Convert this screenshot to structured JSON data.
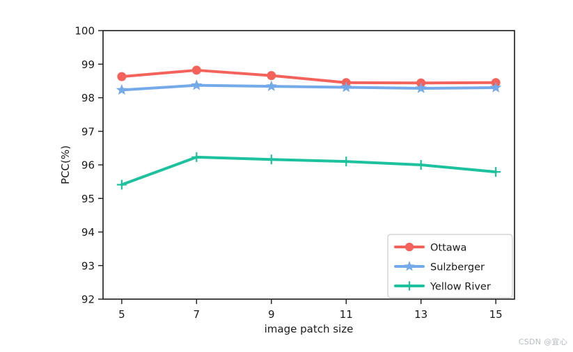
{
  "figure": {
    "watermark": {
      "text": "CSDN @宜心",
      "color": "#b6bcc2"
    },
    "background": "#ffffff"
  },
  "chart_data": {
    "type": "line",
    "title": "",
    "xlabel": "image patch size",
    "ylabel": "PCC(%)",
    "x": [
      5,
      7,
      9,
      11,
      13,
      15
    ],
    "xticks": [
      "5",
      "7",
      "9",
      "11",
      "13",
      "15"
    ],
    "yticks": [
      "92",
      "93",
      "94",
      "95",
      "96",
      "97",
      "98",
      "99",
      "100"
    ],
    "xlim": [
      4.5,
      15.5
    ],
    "ylim": [
      92,
      100
    ],
    "grid": false,
    "legend_position": "lower-right",
    "axis_color": "#1a1a1a",
    "legend_border_color": "#cccccc",
    "series": [
      {
        "name": "Ottawa",
        "color": "#f4635b",
        "marker": "circle",
        "values": [
          98.63,
          98.82,
          98.66,
          98.45,
          98.44,
          98.45
        ]
      },
      {
        "name": "Sulzberger",
        "color": "#74aae9",
        "marker": "star",
        "values": [
          98.23,
          98.37,
          98.34,
          98.31,
          98.28,
          98.3
        ]
      },
      {
        "name": "Yellow River",
        "color": "#1dc19e",
        "marker": "plus",
        "values": [
          95.41,
          96.23,
          96.16,
          96.1,
          96.0,
          95.79
        ]
      }
    ]
  }
}
